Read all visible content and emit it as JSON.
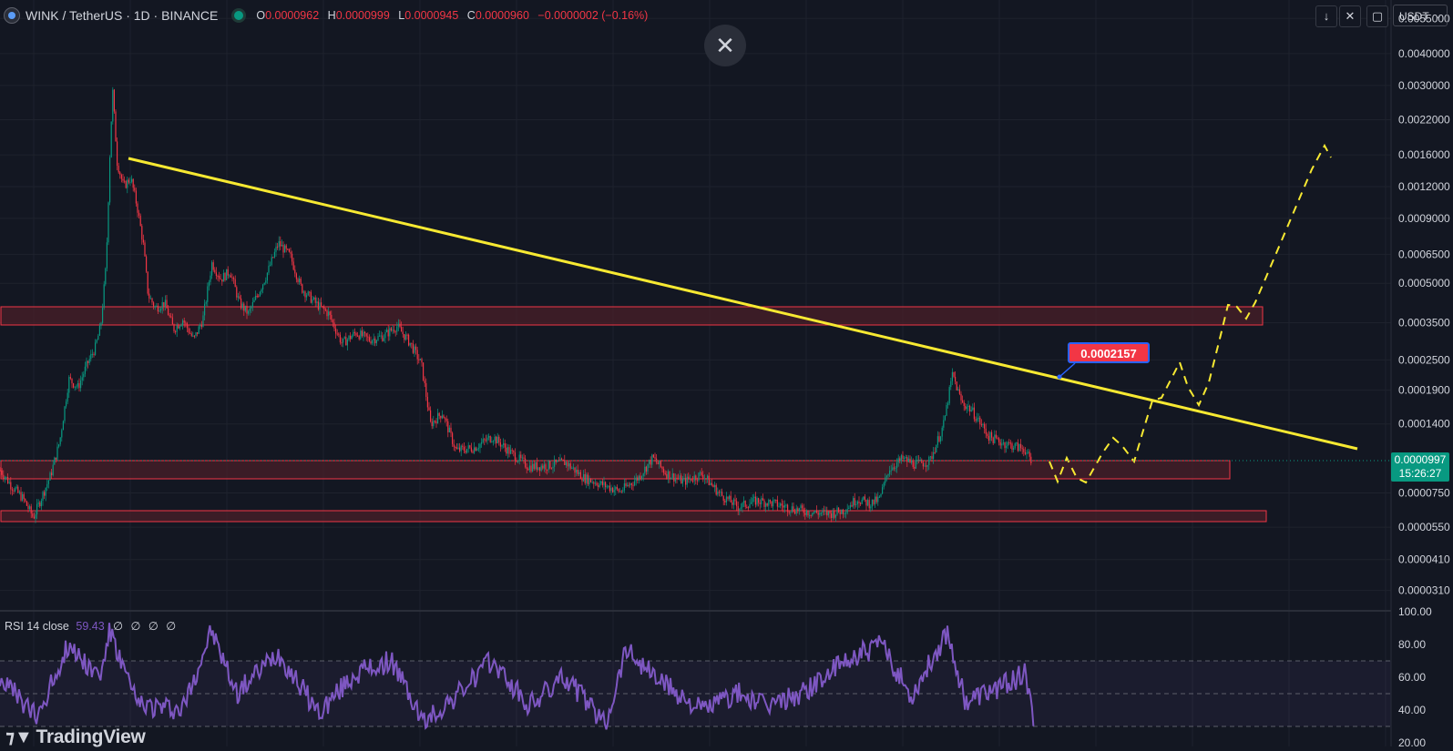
{
  "legend": {
    "symbol": "WINK / TetherUS · 1D · BINANCE",
    "o_label": "O",
    "o": "0.0000962",
    "h_label": "H",
    "h": "0.0000999",
    "l_label": "L",
    "l": "0.0000945",
    "c_label": "C",
    "c": "0.0000960",
    "change": "−0.0000002 (−0.16%)"
  },
  "toolbar": {
    "close_icon": "close-icon",
    "arrow_icon": "arrow-down-icon",
    "collapse_icon": "collapse-icon",
    "fullscreen_icon": "fullscreen-icon",
    "currency": "USDT"
  },
  "last_price": {
    "value": "0.0000997",
    "countdown": "15:26:27"
  },
  "callout": {
    "value": "0.0002157"
  },
  "rsi_legend": {
    "name": "RSI",
    "params": "14 close",
    "value": "59.43",
    "na": [
      "∅",
      "∅",
      "∅",
      "∅"
    ]
  },
  "branding": {
    "name": "TradingView"
  },
  "colors": {
    "background": "#131722",
    "up": "#089981",
    "down": "#f23645",
    "trendline": "#f7e932",
    "projection": "#f7e932",
    "zone_fill": "#4a1f28",
    "zone_border": "#f23645",
    "rsi_line": "#7e57c2",
    "grid": "#1e222d"
  },
  "chart_data": [
    {
      "type": "candlestick",
      "title": "WINK / TetherUS · 1D · BINANCE",
      "y_scale": "log",
      "y_ticks": [
        "0.0055000",
        "0.0040000",
        "0.0030000",
        "0.0022000",
        "0.0016000",
        "0.0012000",
        "0.0009000",
        "0.0006500",
        "0.0005000",
        "0.0003500",
        "0.0002500",
        "0.0001900",
        "0.0001400",
        "0.0000750",
        "0.0000550",
        "0.0000410",
        "0.0000310"
      ],
      "ylim": [
        2.6e-05,
        0.0065
      ],
      "grid": true,
      "price_path": [
        [
          0,
          9.2e-05
        ],
        [
          12,
          8e-05
        ],
        [
          25,
          7.1e-05
        ],
        [
          36,
          6e-05
        ],
        [
          45,
          7.2e-05
        ],
        [
          55,
          8.8e-05
        ],
        [
          65,
          0.00012
        ],
        [
          75,
          0.00021
        ],
        [
          85,
          0.000195
        ],
        [
          95,
          0.00024
        ],
        [
          104,
          0.00028
        ],
        [
          110,
          0.00034
        ],
        [
          116,
          0.0006
        ],
        [
          120,
          0.0016
        ],
        [
          123,
          0.0029
        ],
        [
          128,
          0.0015
        ],
        [
          135,
          0.0012
        ],
        [
          143,
          0.0013
        ],
        [
          150,
          0.001
        ],
        [
          157,
          0.0007
        ],
        [
          162,
          0.00045
        ],
        [
          170,
          0.0004
        ],
        [
          180,
          0.00042
        ],
        [
          190,
          0.00033
        ],
        [
          200,
          0.00036
        ],
        [
          212,
          0.0003
        ],
        [
          222,
          0.00036
        ],
        [
          232,
          0.0006
        ],
        [
          242,
          0.00052
        ],
        [
          252,
          0.00056
        ],
        [
          262,
          0.00042
        ],
        [
          272,
          0.00038
        ],
        [
          282,
          0.00045
        ],
        [
          292,
          0.00054
        ],
        [
          305,
          0.00072
        ],
        [
          318,
          0.00064
        ],
        [
          330,
          0.00048
        ],
        [
          345,
          0.00042
        ],
        [
          360,
          0.00038
        ],
        [
          375,
          0.00029
        ],
        [
          390,
          0.00032
        ],
        [
          405,
          0.0003
        ],
        [
          420,
          0.00031
        ],
        [
          435,
          0.00034
        ],
        [
          450,
          0.00029
        ],
        [
          462,
          0.00024
        ],
        [
          472,
          0.00014
        ],
        [
          485,
          0.000155
        ],
        [
          500,
          0.00011
        ],
        [
          520,
          0.000113
        ],
        [
          540,
          0.000125
        ],
        [
          560,
          0.000108
        ],
        [
          580,
          9.5e-05
        ],
        [
          600,
          9.6e-05
        ],
        [
          620,
          9.9e-05
        ],
        [
          640,
          8.6e-05
        ],
        [
          660,
          8.1e-05
        ],
        [
          680,
          7.6e-05
        ],
        [
          700,
          8.6e-05
        ],
        [
          716,
          0.000103
        ],
        [
          730,
          9e-05
        ],
        [
          750,
          8.3e-05
        ],
        [
          770,
          8.9e-05
        ],
        [
          790,
          7.4e-05
        ],
        [
          810,
          6.6e-05
        ],
        [
          830,
          7e-05
        ],
        [
          850,
          6.8e-05
        ],
        [
          870,
          6.5e-05
        ],
        [
          890,
          6.3e-05
        ],
        [
          910,
          6.2e-05
        ],
        [
          925,
          6.4e-05
        ],
        [
          940,
          7.1e-05
        ],
        [
          955,
          6.8e-05
        ],
        [
          965,
          7.1e-05
        ],
        [
          975,
          9.3e-05
        ],
        [
          990,
          0.000102
        ],
        [
          1005,
          9.7e-05
        ],
        [
          1020,
          0.0001
        ],
        [
          1035,
          0.000138
        ],
        [
          1045,
          0.00022
        ],
        [
          1055,
          0.00017
        ],
        [
          1065,
          0.00016
        ],
        [
          1075,
          0.000142
        ],
        [
          1085,
          0.000125
        ],
        [
          1100,
          0.000118
        ],
        [
          1115,
          0.000114
        ],
        [
          1125,
          0.000111
        ],
        [
          1132,
          9.6e-05
        ]
      ]
    },
    {
      "type": "line",
      "title": "RSI 14 close",
      "y_ticks": [
        "100.00",
        "80.00",
        "60.00",
        "40.00",
        "20.00"
      ],
      "ylim": [
        20,
        100
      ],
      "bands": [
        30,
        50,
        70
      ],
      "anchors": [
        [
          0,
          60
        ],
        [
          40,
          35
        ],
        [
          75,
          80
        ],
        [
          110,
          60
        ],
        [
          120,
          88
        ],
        [
          150,
          44
        ],
        [
          200,
          40
        ],
        [
          232,
          88
        ],
        [
          260,
          50
        ],
        [
          305,
          75
        ],
        [
          350,
          38
        ],
        [
          390,
          62
        ],
        [
          430,
          70
        ],
        [
          465,
          32
        ],
        [
          500,
          48
        ],
        [
          540,
          70
        ],
        [
          580,
          42
        ],
        [
          620,
          60
        ],
        [
          665,
          32
        ],
        [
          687,
          78
        ],
        [
          720,
          60
        ],
        [
          770,
          40
        ],
        [
          810,
          50
        ],
        [
          840,
          42
        ],
        [
          880,
          50
        ],
        [
          935,
          72
        ],
        [
          968,
          80
        ],
        [
          1000,
          48
        ],
        [
          1040,
          88
        ],
        [
          1060,
          45
        ],
        [
          1100,
          55
        ],
        [
          1125,
          62
        ],
        [
          1135,
          32
        ]
      ]
    }
  ]
}
